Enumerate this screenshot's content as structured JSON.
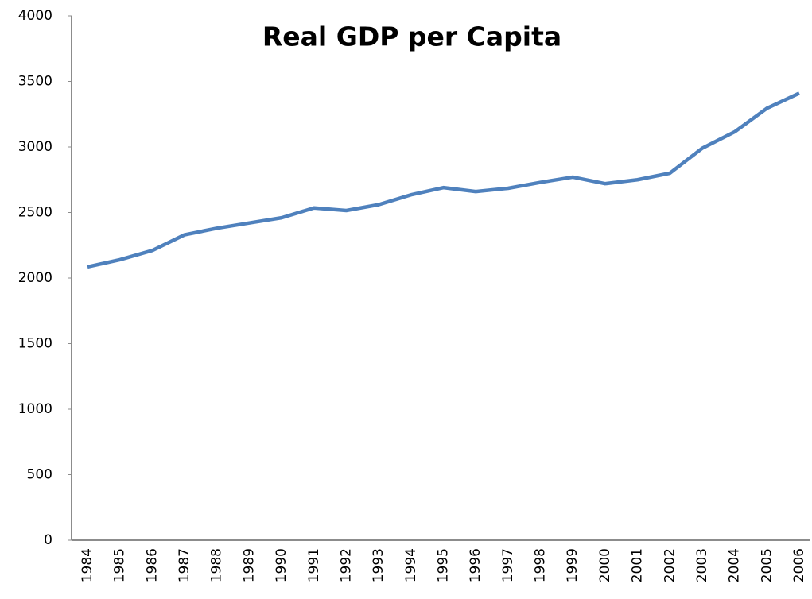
{
  "chart_data": {
    "type": "line",
    "title": "Real GDP per Capita",
    "categories": [
      "1984",
      "1985",
      "1986",
      "1987",
      "1988",
      "1989",
      "1990",
      "1991",
      "1992",
      "1993",
      "1994",
      "1995",
      "1996",
      "1997",
      "1998",
      "1999",
      "2000",
      "2001",
      "2002",
      "2003",
      "2004",
      "2005",
      "2006"
    ],
    "values": [
      2085,
      2140,
      2210,
      2330,
      2380,
      2420,
      2460,
      2535,
      2515,
      2560,
      2635,
      2690,
      2660,
      2685,
      2730,
      2770,
      2720,
      2750,
      2800,
      2990,
      3115,
      3295,
      3410
    ],
    "color": "#4f81bd",
    "ylim": [
      0,
      4000
    ],
    "yticks": [
      0,
      500,
      1000,
      1500,
      2000,
      2500,
      3000,
      3500,
      4000
    ],
    "grid": false
  }
}
